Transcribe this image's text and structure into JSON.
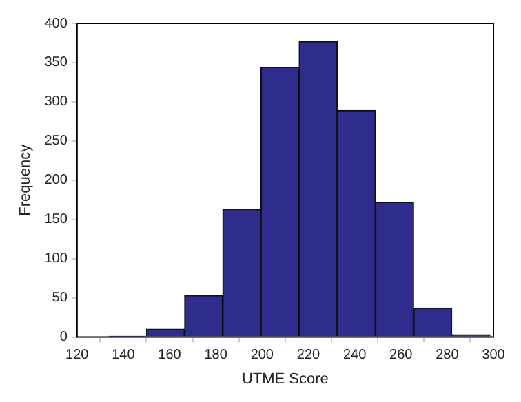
{
  "chart_data": {
    "type": "histogram",
    "xlabel": "UTME Score",
    "ylabel": "Frequency",
    "bins": [
      133.5,
      150,
      166.5,
      183,
      199.5,
      216,
      232.5,
      249,
      265.5,
      282,
      298.5
    ],
    "values": [
      1,
      10,
      53,
      163,
      344,
      377,
      289,
      172,
      37,
      3
    ],
    "color": "#2e2c8c",
    "xlim": [
      120,
      300
    ],
    "xticks": [
      120,
      140,
      160,
      180,
      200,
      220,
      240,
      260,
      280,
      300
    ],
    "ylim": [
      0,
      400
    ],
    "yticks": [
      0,
      50,
      100,
      150,
      200,
      250,
      300,
      350,
      400
    ],
    "grid": false,
    "legend": false
  }
}
